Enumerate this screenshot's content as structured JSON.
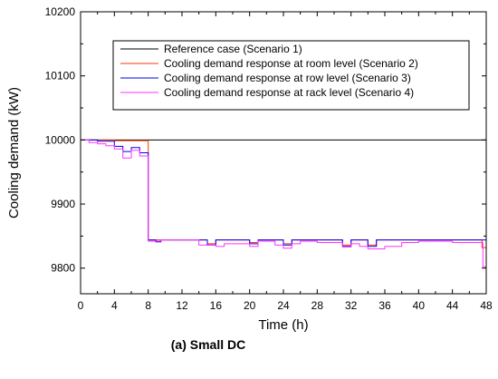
{
  "chart_data": {
    "type": "line",
    "title": "",
    "caption": "(a) Small DC",
    "xlabel": "Time (h)",
    "ylabel": "Cooling demand (kW)",
    "xlim": [
      0,
      48
    ],
    "ylim": [
      9760,
      10200
    ],
    "xticks": [
      0,
      4,
      8,
      12,
      16,
      20,
      24,
      28,
      32,
      36,
      40,
      44,
      48
    ],
    "yticks": [
      9800,
      9900,
      10000,
      10100,
      10200
    ],
    "grid": false,
    "legend_placement": "top-right",
    "series": [
      {
        "name": "Reference case (Scenario 1)",
        "color": "#000000",
        "points": [
          [
            0,
            10000
          ],
          [
            48,
            10000
          ]
        ]
      },
      {
        "name": "Cooling demand response at room level (Scenario 2)",
        "color": "#ff3300",
        "points": [
          [
            0,
            10000
          ],
          [
            4,
            10000
          ],
          [
            4,
            9999
          ],
          [
            8,
            9999
          ],
          [
            8,
            9844
          ],
          [
            15,
            9844
          ],
          [
            15,
            9838
          ],
          [
            16,
            9838
          ],
          [
            16,
            9844
          ],
          [
            20,
            9844
          ],
          [
            20,
            9840
          ],
          [
            21,
            9840
          ],
          [
            21,
            9844
          ],
          [
            24,
            9844
          ],
          [
            24,
            9838
          ],
          [
            25,
            9838
          ],
          [
            25,
            9844
          ],
          [
            31,
            9844
          ],
          [
            31,
            9836
          ],
          [
            32,
            9836
          ],
          [
            32,
            9844
          ],
          [
            34,
            9844
          ],
          [
            34,
            9836
          ],
          [
            35,
            9836
          ],
          [
            35,
            9844
          ],
          [
            47.5,
            9844
          ],
          [
            47.5,
            9832
          ],
          [
            48,
            9832
          ]
        ]
      },
      {
        "name": "Cooling demand response at row level (Scenario 3)",
        "color": "#0000ee",
        "points": [
          [
            0,
            10000
          ],
          [
            2,
            10000
          ],
          [
            2,
            9998
          ],
          [
            4,
            9998
          ],
          [
            4,
            9990
          ],
          [
            5,
            9990
          ],
          [
            5,
            9982
          ],
          [
            6,
            9982
          ],
          [
            6,
            9988
          ],
          [
            7,
            9988
          ],
          [
            7,
            9980
          ],
          [
            8,
            9980
          ],
          [
            8,
            9844
          ],
          [
            8.9,
            9844
          ],
          [
            8.9,
            9841
          ],
          [
            9.5,
            9841
          ],
          [
            9.5,
            9844
          ],
          [
            15,
            9844
          ],
          [
            15,
            9836
          ],
          [
            16,
            9836
          ],
          [
            16,
            9844
          ],
          [
            20,
            9844
          ],
          [
            20,
            9838
          ],
          [
            21,
            9838
          ],
          [
            21,
            9844
          ],
          [
            24,
            9844
          ],
          [
            24,
            9836
          ],
          [
            25,
            9836
          ],
          [
            25,
            9844
          ],
          [
            31,
            9844
          ],
          [
            31,
            9834
          ],
          [
            32,
            9834
          ],
          [
            32,
            9844
          ],
          [
            34,
            9844
          ],
          [
            34,
            9834
          ],
          [
            35,
            9834
          ],
          [
            35,
            9844
          ],
          [
            48,
            9844
          ],
          [
            48,
            9836
          ]
        ]
      },
      {
        "name": "Cooling demand response at rack level (Scenario 4)",
        "color": "#ff33ff",
        "points": [
          [
            0,
            10000
          ],
          [
            1,
            10000
          ],
          [
            1,
            9996
          ],
          [
            2,
            9996
          ],
          [
            2,
            9994
          ],
          [
            3,
            9994
          ],
          [
            3,
            9991
          ],
          [
            4,
            9991
          ],
          [
            4,
            9986
          ],
          [
            5,
            9986
          ],
          [
            5,
            9972
          ],
          [
            6,
            9972
          ],
          [
            6,
            9984
          ],
          [
            7,
            9984
          ],
          [
            7,
            9975
          ],
          [
            8,
            9975
          ],
          [
            8,
            9842
          ],
          [
            9.5,
            9842
          ],
          [
            9.5,
            9844
          ],
          [
            14,
            9844
          ],
          [
            14,
            9836
          ],
          [
            16,
            9836
          ],
          [
            16,
            9834
          ],
          [
            17,
            9834
          ],
          [
            17,
            9838
          ],
          [
            20,
            9838
          ],
          [
            20,
            9834
          ],
          [
            21,
            9834
          ],
          [
            21,
            9842
          ],
          [
            23,
            9842
          ],
          [
            23,
            9836
          ],
          [
            24,
            9836
          ],
          [
            24,
            9831
          ],
          [
            25,
            9831
          ],
          [
            25,
            9838
          ],
          [
            26,
            9838
          ],
          [
            26,
            9842
          ],
          [
            28,
            9842
          ],
          [
            28,
            9840
          ],
          [
            31,
            9840
          ],
          [
            31,
            9833
          ],
          [
            32,
            9833
          ],
          [
            32,
            9838
          ],
          [
            33,
            9838
          ],
          [
            33,
            9834
          ],
          [
            34,
            9834
          ],
          [
            34,
            9830
          ],
          [
            36,
            9830
          ],
          [
            36,
            9834
          ],
          [
            38,
            9834
          ],
          [
            38,
            9840
          ],
          [
            40,
            9840
          ],
          [
            40,
            9842
          ],
          [
            44,
            9842
          ],
          [
            44,
            9840
          ],
          [
            47.6,
            9840
          ],
          [
            47.6,
            9802
          ],
          [
            48,
            9802
          ]
        ]
      }
    ]
  }
}
